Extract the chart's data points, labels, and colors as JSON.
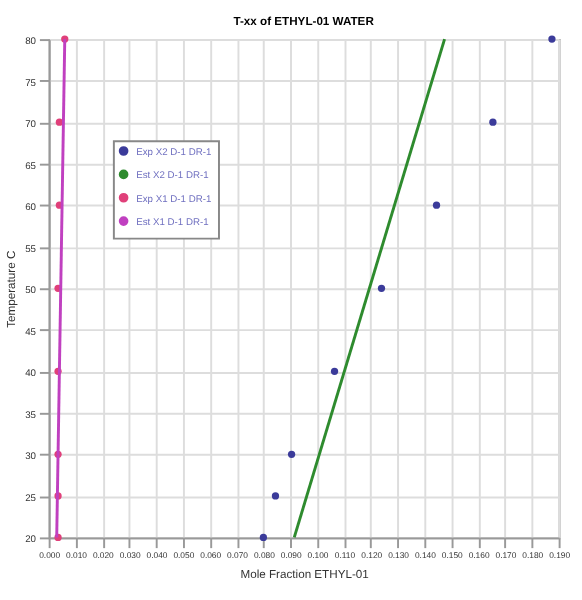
{
  "chart_data": {
    "type": "scatter",
    "title": "T-xx of ETHYL-01 WATER",
    "xlabel": "Mole Fraction ETHYL-01",
    "ylabel": "Temperature C",
    "xlim": [
      0,
      0.19
    ],
    "xticks": [
      {
        "value": 0,
        "label": "0.000"
      },
      {
        "value": 0.01,
        "label": "0.010"
      },
      {
        "value": 0.02,
        "label": "0.020"
      },
      {
        "value": 0.03,
        "label": "0.030"
      },
      {
        "value": 0.04,
        "label": "0.040"
      },
      {
        "value": 0.05,
        "label": "0.050"
      },
      {
        "value": 0.06,
        "label": "0.060"
      },
      {
        "value": 0.07,
        "label": "0.070"
      },
      {
        "value": 0.08,
        "label": "0.080"
      },
      {
        "value": 0.09,
        "label": "0.090"
      },
      {
        "value": 0.1,
        "label": "0.100"
      },
      {
        "value": 0.11,
        "label": "0.110"
      },
      {
        "value": 0.12,
        "label": "0.120"
      },
      {
        "value": 0.13,
        "label": "0.130"
      },
      {
        "value": 0.14,
        "label": "0.140"
      },
      {
        "value": 0.15,
        "label": "0.150"
      },
      {
        "value": 0.16,
        "label": "0.160"
      },
      {
        "value": 0.17,
        "label": "0.170"
      },
      {
        "value": 0.18,
        "label": "0.180"
      },
      {
        "value": 0.19,
        "label": "0.190"
      }
    ],
    "ylim": [
      20,
      80
    ],
    "yticks": [
      20,
      25,
      30,
      35,
      40,
      45,
      50,
      55,
      60,
      65,
      70,
      75,
      80
    ],
    "grid": true,
    "legend": "top left",
    "series": [
      {
        "name": "Exp X2 D-1 DR-1",
        "type": "scatter",
        "marker": "circle",
        "color": "#3b3b9a",
        "x": [
          0.08,
          0.0845,
          0.0905,
          0.1065,
          0.124,
          0.1445,
          0.1655,
          0.1875
        ],
        "values": [
          20,
          25,
          30,
          40,
          50,
          60,
          70,
          80
        ]
      },
      {
        "name": "Est X2 D-1 DR-1",
        "type": "line",
        "color": "#2e8b2e",
        "x": [
          0.0915,
          0.1475
        ],
        "values": [
          20,
          80
        ]
      },
      {
        "name": "Exp X1 D-1 DR-1",
        "type": "scatter",
        "marker": "circle",
        "color": "#e0407a",
        "x": [
          0.0035,
          0.0035,
          0.0035,
          0.0035,
          0.0035,
          0.004,
          0.004,
          0.006
        ],
        "values": [
          20,
          25,
          30,
          40,
          50,
          60,
          70,
          80
        ]
      },
      {
        "name": "Est X1 D-1 DR-1",
        "type": "line",
        "color": "#c040c0",
        "x": [
          0.003,
          0.006
        ],
        "values": [
          20,
          80
        ]
      }
    ]
  }
}
